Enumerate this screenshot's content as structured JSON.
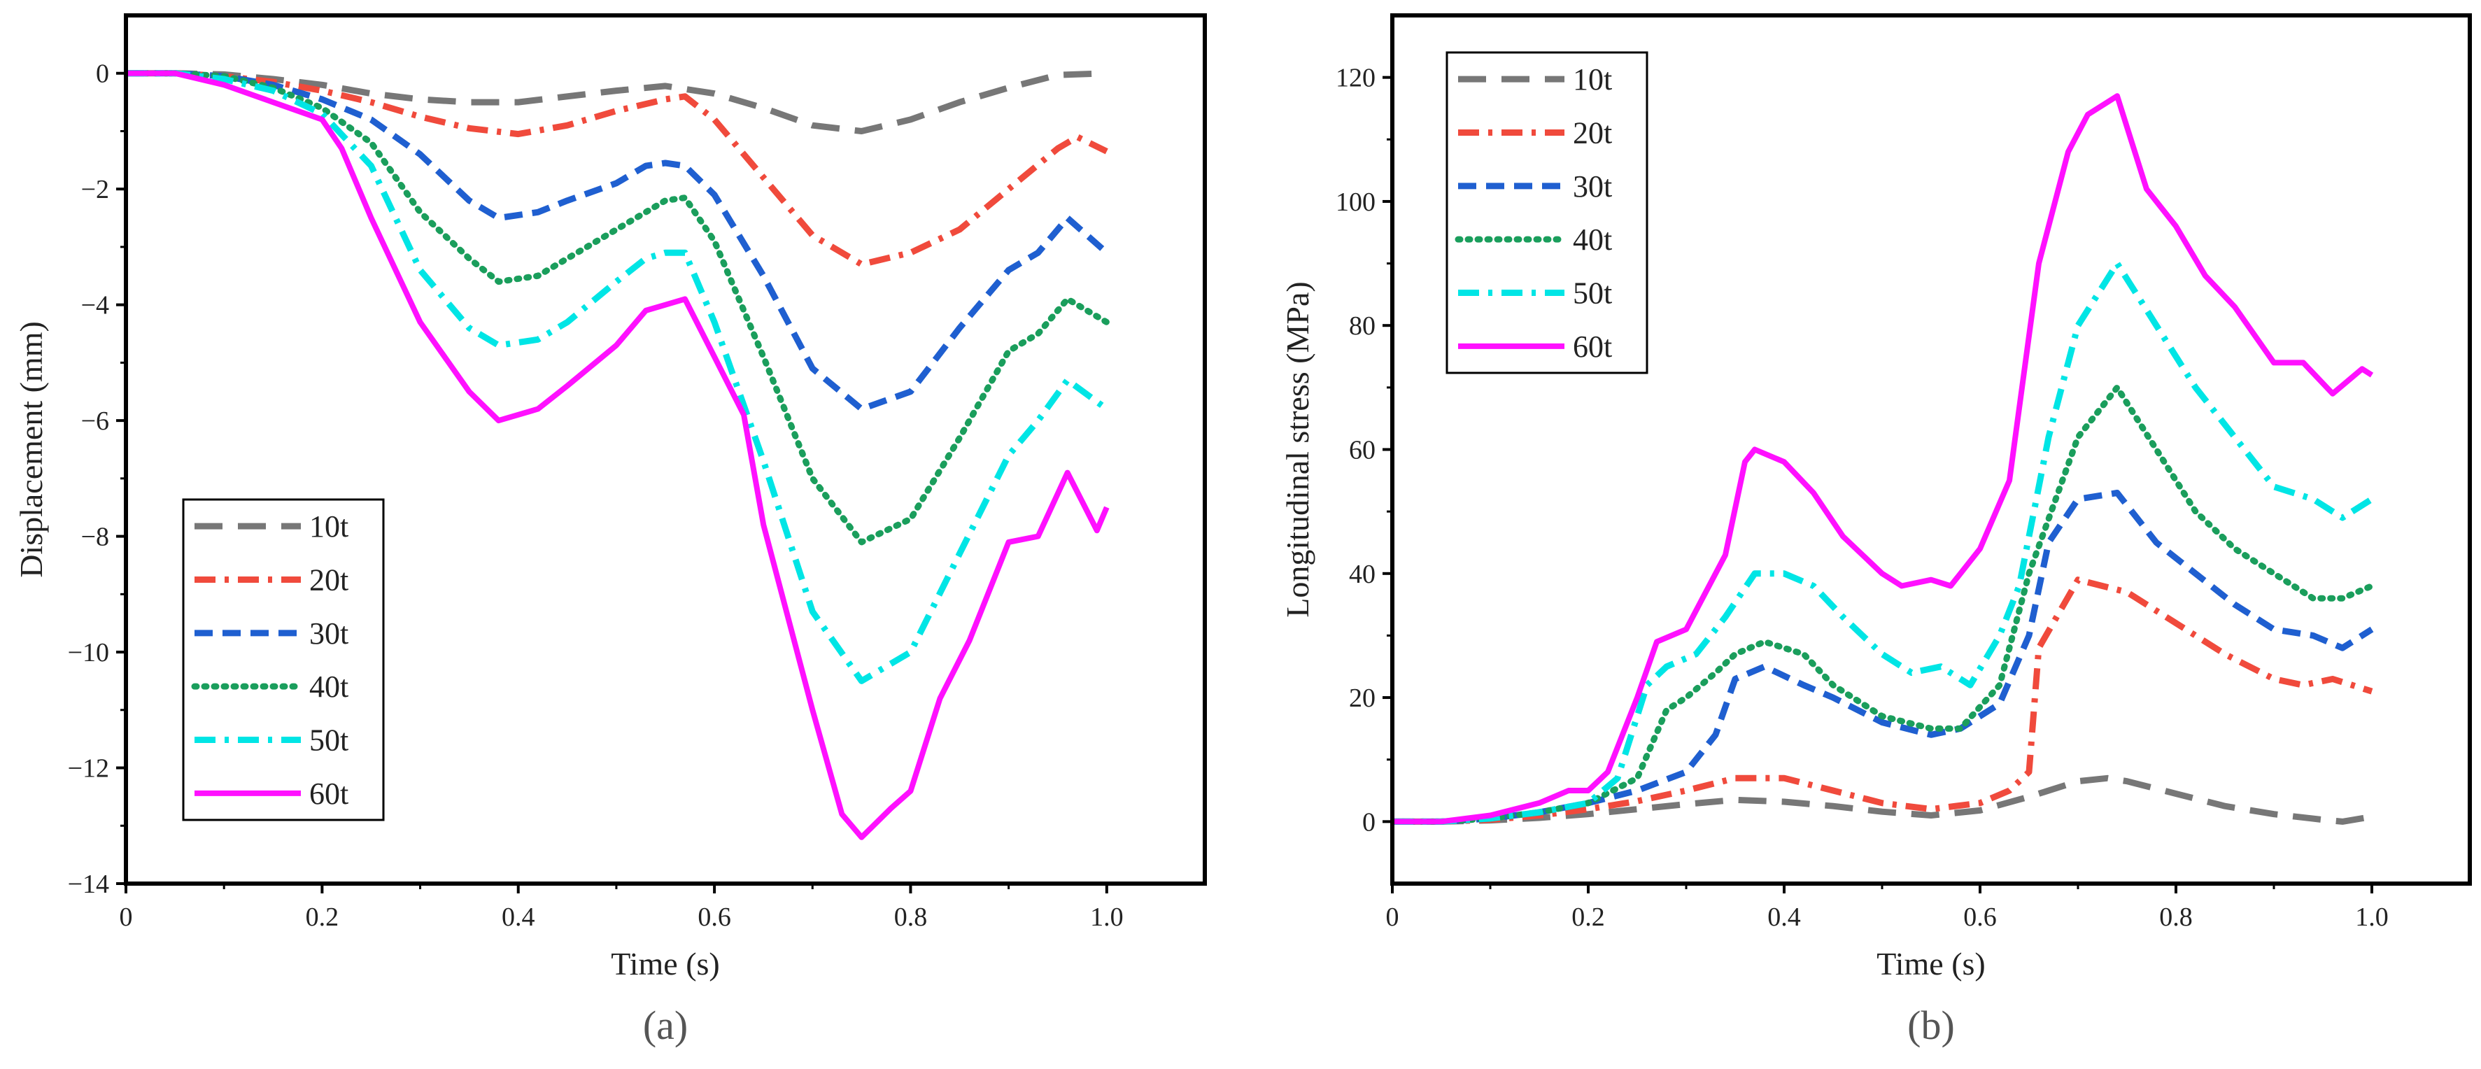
{
  "chart_data": [
    {
      "type": "line",
      "panel_label": "(a)",
      "xlabel": "Time (s)",
      "ylabel": "Displacement (mm)",
      "xlim": [
        0,
        1.1
      ],
      "ylim": [
        -14,
        1
      ],
      "x_ticks": [
        0,
        0.2,
        0.4,
        0.6,
        0.8,
        1.0
      ],
      "x_tick_labels": [
        "0",
        "0.2",
        "0.4",
        "0.6",
        "0.8",
        "1.0"
      ],
      "y_ticks": [
        0,
        -2,
        -4,
        -6,
        -8,
        -10,
        -12,
        -14
      ],
      "y_tick_labels": [
        "0",
        "−2",
        "−4",
        "−6",
        "−8",
        "−10",
        "−12",
        "−14"
      ],
      "legend_position": "bottom-left",
      "series": [
        {
          "name": "10t",
          "color": "#777777",
          "dash": "long-dash",
          "x": [
            0,
            0.05,
            0.1,
            0.15,
            0.2,
            0.25,
            0.3,
            0.35,
            0.4,
            0.45,
            0.5,
            0.55,
            0.6,
            0.65,
            0.7,
            0.75,
            0.8,
            0.85,
            0.9,
            0.95,
            1.0
          ],
          "y": [
            0,
            0,
            -0.02,
            -0.1,
            -0.2,
            -0.35,
            -0.45,
            -0.5,
            -0.5,
            -0.4,
            -0.3,
            -0.22,
            -0.35,
            -0.6,
            -0.9,
            -1.0,
            -0.8,
            -0.5,
            -0.25,
            -0.03,
            0
          ]
        },
        {
          "name": "20t",
          "color": "#f04a3c",
          "dash": "dash-dot",
          "x": [
            0,
            0.05,
            0.1,
            0.15,
            0.2,
            0.25,
            0.3,
            0.35,
            0.4,
            0.45,
            0.5,
            0.55,
            0.57,
            0.6,
            0.65,
            0.7,
            0.75,
            0.8,
            0.85,
            0.9,
            0.95,
            0.97,
            1.0
          ],
          "y": [
            0,
            0,
            -0.05,
            -0.15,
            -0.3,
            -0.5,
            -0.75,
            -0.95,
            -1.05,
            -0.9,
            -0.65,
            -0.45,
            -0.4,
            -0.8,
            -1.8,
            -2.8,
            -3.3,
            -3.1,
            -2.7,
            -2.0,
            -1.3,
            -1.1,
            -1.35
          ]
        },
        {
          "name": "30t",
          "color": "#1f5fd0",
          "dash": "dash",
          "x": [
            0,
            0.05,
            0.1,
            0.15,
            0.2,
            0.25,
            0.3,
            0.35,
            0.38,
            0.42,
            0.45,
            0.5,
            0.53,
            0.55,
            0.57,
            0.6,
            0.65,
            0.7,
            0.75,
            0.8,
            0.85,
            0.9,
            0.93,
            0.96,
            1.0
          ],
          "y": [
            0,
            0,
            -0.05,
            -0.2,
            -0.45,
            -0.8,
            -1.4,
            -2.2,
            -2.5,
            -2.4,
            -2.2,
            -1.9,
            -1.6,
            -1.55,
            -1.6,
            -2.1,
            -3.5,
            -5.1,
            -5.8,
            -5.5,
            -4.4,
            -3.4,
            -3.1,
            -2.5,
            -3.1
          ]
        },
        {
          "name": "40t",
          "color": "#1a9e5c",
          "dash": "dot",
          "x": [
            0,
            0.05,
            0.1,
            0.15,
            0.2,
            0.25,
            0.3,
            0.35,
            0.38,
            0.42,
            0.45,
            0.5,
            0.55,
            0.57,
            0.6,
            0.65,
            0.7,
            0.75,
            0.8,
            0.85,
            0.9,
            0.93,
            0.96,
            1.0
          ],
          "y": [
            0,
            0,
            -0.05,
            -0.25,
            -0.6,
            -1.2,
            -2.4,
            -3.2,
            -3.6,
            -3.5,
            -3.2,
            -2.7,
            -2.2,
            -2.15,
            -2.9,
            -4.9,
            -7.0,
            -8.1,
            -7.7,
            -6.3,
            -4.8,
            -4.5,
            -3.9,
            -4.3
          ]
        },
        {
          "name": "50t",
          "color": "#00e5e5",
          "dash": "dash-dot",
          "x": [
            0,
            0.05,
            0.1,
            0.15,
            0.2,
            0.25,
            0.3,
            0.35,
            0.38,
            0.42,
            0.45,
            0.5,
            0.53,
            0.55,
            0.57,
            0.6,
            0.65,
            0.7,
            0.75,
            0.8,
            0.85,
            0.9,
            0.93,
            0.96,
            1.0
          ],
          "y": [
            0,
            0,
            -0.1,
            -0.3,
            -0.7,
            -1.6,
            -3.4,
            -4.4,
            -4.7,
            -4.6,
            -4.3,
            -3.6,
            -3.2,
            -3.1,
            -3.1,
            -4.3,
            -6.7,
            -9.3,
            -10.5,
            -10.0,
            -8.3,
            -6.6,
            -6.0,
            -5.3,
            -5.8
          ]
        },
        {
          "name": "60t",
          "color": "#ff10ff",
          "dash": "solid",
          "x": [
            0,
            0.05,
            0.1,
            0.15,
            0.2,
            0.22,
            0.25,
            0.3,
            0.35,
            0.38,
            0.42,
            0.45,
            0.5,
            0.53,
            0.55,
            0.57,
            0.6,
            0.63,
            0.65,
            0.7,
            0.73,
            0.75,
            0.78,
            0.8,
            0.83,
            0.86,
            0.9,
            0.93,
            0.96,
            0.99,
            1.0
          ],
          "y": [
            0,
            0,
            -0.2,
            -0.5,
            -0.8,
            -1.3,
            -2.5,
            -4.3,
            -5.5,
            -6.0,
            -5.8,
            -5.4,
            -4.7,
            -4.1,
            -4.0,
            -3.9,
            -4.9,
            -5.9,
            -7.8,
            -11.0,
            -12.8,
            -13.2,
            -12.7,
            -12.4,
            -10.8,
            -9.8,
            -8.1,
            -8.0,
            -6.9,
            -7.9,
            -7.5
          ]
        }
      ]
    },
    {
      "type": "line",
      "panel_label": "(b)",
      "xlabel": "Time (s)",
      "ylabel": "Longitudinal stress (MPa)",
      "xlim": [
        0,
        1.1
      ],
      "ylim": [
        -10,
        130
      ],
      "x_ticks": [
        0,
        0.2,
        0.4,
        0.6,
        0.8,
        1.0
      ],
      "x_tick_labels": [
        "0",
        "0.2",
        "0.4",
        "0.6",
        "0.8",
        "1.0"
      ],
      "y_ticks": [
        0,
        20,
        40,
        60,
        80,
        100,
        120
      ],
      "y_tick_labels": [
        "0",
        "20",
        "40",
        "60",
        "80",
        "100",
        "120"
      ],
      "legend_position": "top-left",
      "series": [
        {
          "name": "10t",
          "color": "#777777",
          "dash": "long-dash",
          "x": [
            0,
            0.05,
            0.1,
            0.15,
            0.2,
            0.25,
            0.3,
            0.35,
            0.4,
            0.45,
            0.5,
            0.55,
            0.6,
            0.65,
            0.7,
            0.73,
            0.75,
            0.8,
            0.85,
            0.9,
            0.95,
            0.97,
            1.0
          ],
          "y": [
            0,
            0,
            0.2,
            0.6,
            1.2,
            2.0,
            2.8,
            3.5,
            3.2,
            2.5,
            1.6,
            1.0,
            1.8,
            4.0,
            6.5,
            7.0,
            6.5,
            4.5,
            2.5,
            1.2,
            0.3,
            0,
            0.8
          ]
        },
        {
          "name": "20t",
          "color": "#f04a3c",
          "dash": "dash-dot",
          "x": [
            0,
            0.05,
            0.1,
            0.15,
            0.2,
            0.25,
            0.3,
            0.35,
            0.4,
            0.45,
            0.5,
            0.55,
            0.6,
            0.63,
            0.65,
            0.66,
            0.7,
            0.75,
            0.8,
            0.85,
            0.9,
            0.93,
            0.96,
            1.0
          ],
          "y": [
            0,
            0,
            0.3,
            1.0,
            2.0,
            3.3,
            5.0,
            7.0,
            7.0,
            5.0,
            3.0,
            2.0,
            3.0,
            5.0,
            8.0,
            28.0,
            39.0,
            37.0,
            32.0,
            27.0,
            23.0,
            22.0,
            23.0,
            21.0
          ]
        },
        {
          "name": "30t",
          "color": "#1f5fd0",
          "dash": "dash",
          "x": [
            0,
            0.05,
            0.1,
            0.15,
            0.2,
            0.25,
            0.3,
            0.33,
            0.35,
            0.38,
            0.42,
            0.45,
            0.5,
            0.55,
            0.58,
            0.62,
            0.65,
            0.67,
            0.7,
            0.74,
            0.78,
            0.82,
            0.86,
            0.9,
            0.94,
            0.97,
            1.0
          ],
          "y": [
            0,
            0,
            0.5,
            1.5,
            3.0,
            5.0,
            8.0,
            14.0,
            23.0,
            25.0,
            22.0,
            20.0,
            16.0,
            14.0,
            15.0,
            19.0,
            30.0,
            45.0,
            52.0,
            53.0,
            45.0,
            40.0,
            35.0,
            31.0,
            30.0,
            28.0,
            31.0
          ]
        },
        {
          "name": "40t",
          "color": "#1a9e5c",
          "dash": "dot",
          "x": [
            0,
            0.05,
            0.1,
            0.15,
            0.2,
            0.25,
            0.28,
            0.3,
            0.33,
            0.35,
            0.38,
            0.42,
            0.45,
            0.5,
            0.55,
            0.58,
            0.62,
            0.65,
            0.7,
            0.74,
            0.78,
            0.82,
            0.86,
            0.9,
            0.94,
            0.97,
            1.0
          ],
          "y": [
            0,
            0,
            0.5,
            1.5,
            3.0,
            7.0,
            18.0,
            20.0,
            24.0,
            27.0,
            29.0,
            27.0,
            22.0,
            17.0,
            15.0,
            15.0,
            22.0,
            40.0,
            62.0,
            70.0,
            60.0,
            50.0,
            44.0,
            40.0,
            36.0,
            36.0,
            38.0
          ]
        },
        {
          "name": "50t",
          "color": "#00e5e5",
          "dash": "dash-dot",
          "x": [
            0,
            0.05,
            0.1,
            0.15,
            0.2,
            0.23,
            0.26,
            0.28,
            0.31,
            0.34,
            0.37,
            0.4,
            0.43,
            0.46,
            0.5,
            0.53,
            0.56,
            0.59,
            0.62,
            0.64,
            0.67,
            0.7,
            0.74,
            0.78,
            0.82,
            0.86,
            0.9,
            0.94,
            0.97,
            1.0
          ],
          "y": [
            0,
            0,
            0.5,
            1.5,
            3.0,
            7.0,
            22.0,
            25.0,
            27.0,
            33.0,
            40.0,
            40.0,
            38.0,
            33.0,
            27.0,
            24.0,
            25.0,
            22.0,
            30.0,
            38.0,
            62.0,
            80.0,
            90.0,
            80.0,
            70.0,
            62.0,
            54.0,
            52.0,
            49.0,
            52.0
          ]
        },
        {
          "name": "60t",
          "color": "#ff10ff",
          "dash": "solid",
          "x": [
            0,
            0.05,
            0.1,
            0.15,
            0.18,
            0.2,
            0.22,
            0.25,
            0.27,
            0.3,
            0.32,
            0.34,
            0.36,
            0.37,
            0.4,
            0.43,
            0.46,
            0.5,
            0.52,
            0.55,
            0.57,
            0.6,
            0.63,
            0.66,
            0.69,
            0.71,
            0.74,
            0.77,
            0.8,
            0.83,
            0.86,
            0.9,
            0.93,
            0.96,
            0.99,
            1.0
          ],
          "y": [
            0,
            0,
            1.0,
            3.0,
            5.0,
            5.0,
            8.0,
            20.0,
            29.0,
            31.0,
            37.0,
            43.0,
            58.0,
            60.0,
            58.0,
            53.0,
            46.0,
            40.0,
            38.0,
            39.0,
            38.0,
            44.0,
            55.0,
            90.0,
            108.0,
            114.0,
            117.0,
            102.0,
            96.0,
            88.0,
            83.0,
            74.0,
            74.0,
            69.0,
            73.0,
            72.0
          ]
        }
      ]
    }
  ]
}
